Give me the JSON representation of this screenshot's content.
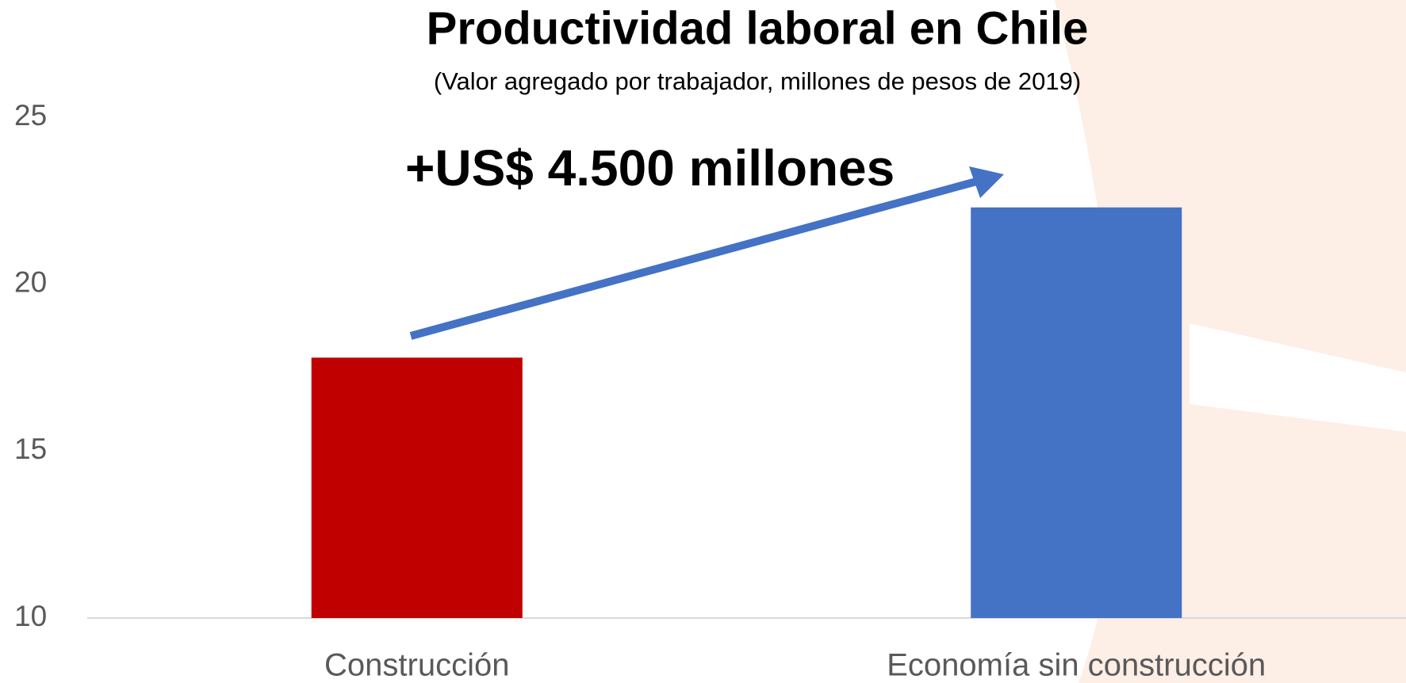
{
  "chart_data": {
    "type": "bar",
    "title": "Productividad laboral en Chile",
    "subtitle": "(Valor agregado por trabajador, millones de pesos de 2019)",
    "annotation": "+US$ 4.500 millones",
    "categories": [
      "Construcción",
      "Economía sin construcción"
    ],
    "values": [
      17.8,
      22.3
    ],
    "colors": [
      "#c00000",
      "#4472c4"
    ],
    "ylim": [
      10,
      25
    ],
    "yticks": [
      10,
      15,
      20,
      25
    ],
    "grid": false
  }
}
